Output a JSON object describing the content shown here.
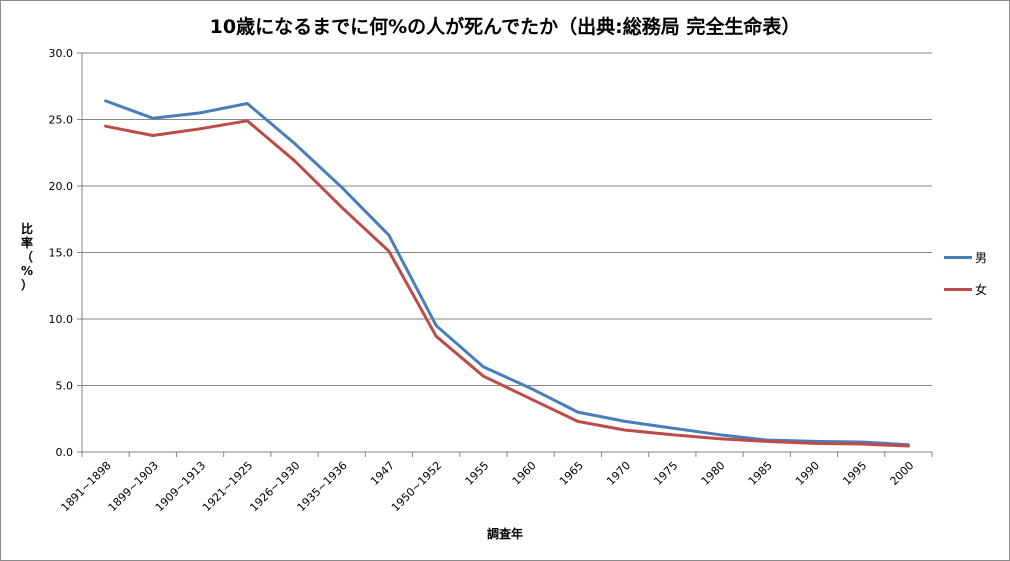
{
  "chart_data": {
    "type": "line",
    "title": "10歳になるまでに何%の人が死んでたか（出典:総務局 完全生命表）",
    "xlabel": "調査年",
    "ylabel": "比率（%）",
    "categories": [
      "1891~1898",
      "1899~1903",
      "1909~1913",
      "1921~1925",
      "1926~1930",
      "1935~1936",
      "1947",
      "1950~1952",
      "1955",
      "1960",
      "1965",
      "1970",
      "1975",
      "1980",
      "1985",
      "1990",
      "1995",
      "2000"
    ],
    "y_ticks": [
      "0.0",
      "5.0",
      "10.0",
      "15.0",
      "20.0",
      "25.0",
      "30.0"
    ],
    "ylim": [
      0,
      30
    ],
    "grid": "horizontal",
    "legend_position": "right",
    "series": [
      {
        "name": "男",
        "color": "#4a7ebb",
        "values": [
          26.4,
          25.1,
          25.5,
          26.2,
          23.2,
          19.9,
          16.3,
          9.5,
          6.4,
          4.8,
          3.0,
          2.3,
          1.8,
          1.3,
          0.9,
          0.8,
          0.75,
          0.55
        ]
      },
      {
        "name": "女",
        "color": "#be4b48",
        "values": [
          24.5,
          23.8,
          24.3,
          24.9,
          21.9,
          18.4,
          15.1,
          8.7,
          5.7,
          4.0,
          2.3,
          1.65,
          1.3,
          1.0,
          0.8,
          0.65,
          0.6,
          0.45
        ]
      }
    ]
  }
}
